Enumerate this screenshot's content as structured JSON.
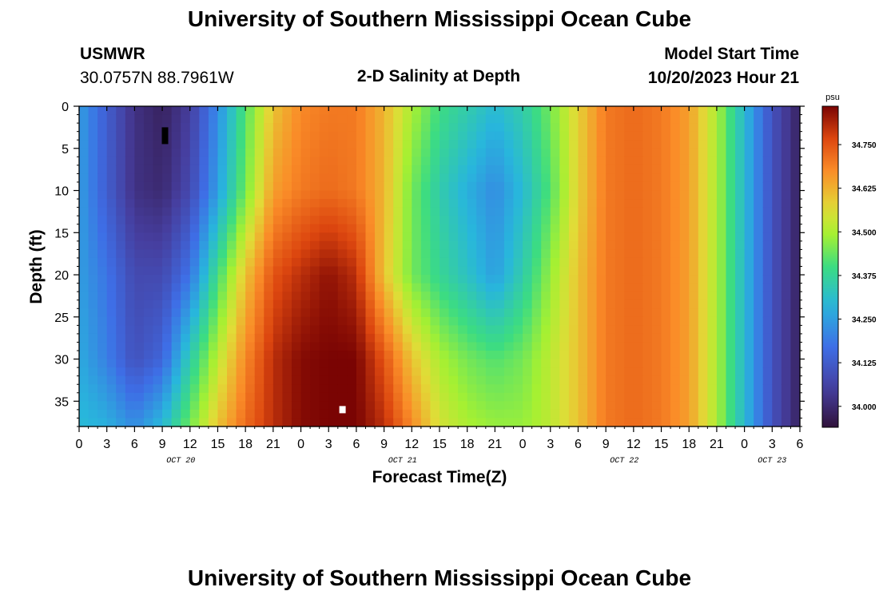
{
  "header": {
    "title": "University of Southern Mississippi Ocean Cube",
    "station": "USMWR",
    "coords": "30.0757N  88.7961W",
    "subtitle": "2-D Salinity at Depth",
    "model_label": "Model Start Time",
    "model_time": "10/20/2023 Hour 21"
  },
  "footer": {
    "title": "University of Southern Mississippi Ocean Cube"
  },
  "chart_data": {
    "type": "heatmap",
    "title": "2-D Salinity at Depth",
    "xlabel": "Forecast Time(Z)",
    "ylabel": "Depth (ft)",
    "x_tick_labels": [
      "0",
      "3",
      "6",
      "9",
      "12",
      "15",
      "18",
      "21",
      "0",
      "3",
      "6",
      "9",
      "12",
      "15",
      "18",
      "21",
      "0",
      "3",
      "6",
      "9",
      "12",
      "15",
      "18",
      "21",
      "0",
      "3",
      "6"
    ],
    "x_hours": [
      0,
      3,
      6,
      9,
      12,
      15,
      18,
      21,
      24,
      27,
      30,
      33,
      36,
      39,
      42,
      45,
      48,
      51,
      54,
      57,
      60,
      63,
      66,
      69,
      72,
      75,
      78
    ],
    "dates": [
      {
        "label": "OCT 20",
        "hour": 11
      },
      {
        "label": "OCT 21",
        "hour": 35
      },
      {
        "label": "OCT 22",
        "hour": 59
      },
      {
        "label": "OCT 23",
        "hour": 75
      }
    ],
    "xlim": [
      0,
      78
    ],
    "y_ticks": [
      0,
      5,
      10,
      15,
      20,
      25,
      30,
      35
    ],
    "ylim": [
      0,
      38
    ],
    "colorbar": {
      "unit": "psu",
      "ticks": [
        "34.000",
        "34.125",
        "34.250",
        "34.375",
        "34.500",
        "34.625",
        "34.750"
      ],
      "tick_values": [
        34.0,
        34.125,
        34.25,
        34.375,
        34.5,
        34.625,
        34.75
      ],
      "range": [
        33.94,
        34.86
      ]
    },
    "salinity_profiles_psu": {
      "depths_ft": [
        0,
        10,
        20,
        30,
        38
      ],
      "by_hour": [
        {
          "hour": 0,
          "values": [
            34.25,
            34.25,
            34.25,
            34.27,
            34.3
          ]
        },
        {
          "hour": 3,
          "values": [
            34.13,
            34.13,
            34.18,
            34.2,
            34.28
          ]
        },
        {
          "hour": 6,
          "values": [
            34.02,
            34.02,
            34.08,
            34.1,
            34.22
          ]
        },
        {
          "hour": 9,
          "values": [
            33.98,
            34.0,
            34.08,
            34.15,
            34.3
          ]
        },
        {
          "hour": 12,
          "values": [
            34.05,
            34.08,
            34.18,
            34.35,
            34.45
          ]
        },
        {
          "hour": 15,
          "values": [
            34.22,
            34.25,
            34.4,
            34.52,
            34.6
          ]
        },
        {
          "hour": 18,
          "values": [
            34.42,
            34.45,
            34.6,
            34.68,
            34.72
          ]
        },
        {
          "hour": 21,
          "values": [
            34.6,
            34.65,
            34.75,
            34.8,
            34.8
          ]
        },
        {
          "hour": 24,
          "values": [
            34.68,
            34.7,
            34.8,
            34.85,
            34.85
          ]
        },
        {
          "hour": 27,
          "values": [
            34.7,
            34.72,
            34.84,
            34.86,
            34.86
          ]
        },
        {
          "hour": 30,
          "values": [
            34.7,
            34.7,
            34.8,
            34.86,
            34.86
          ]
        },
        {
          "hour": 33,
          "values": [
            34.62,
            34.62,
            34.6,
            34.75,
            34.8
          ]
        },
        {
          "hour": 36,
          "values": [
            34.5,
            34.45,
            34.45,
            34.6,
            34.68
          ]
        },
        {
          "hour": 39,
          "values": [
            34.4,
            34.35,
            34.38,
            34.5,
            34.55
          ]
        },
        {
          "hour": 42,
          "values": [
            34.35,
            34.28,
            34.32,
            34.45,
            34.5
          ]
        },
        {
          "hour": 45,
          "values": [
            34.3,
            34.22,
            34.25,
            34.42,
            34.48
          ]
        },
        {
          "hour": 48,
          "values": [
            34.35,
            34.3,
            34.35,
            34.45,
            34.48
          ]
        },
        {
          "hour": 51,
          "values": [
            34.45,
            34.42,
            34.48,
            34.52,
            34.52
          ]
        },
        {
          "hour": 54,
          "values": [
            34.58,
            34.58,
            34.6,
            34.6,
            34.6
          ]
        },
        {
          "hour": 57,
          "values": [
            34.7,
            34.7,
            34.7,
            34.7,
            34.7
          ]
        },
        {
          "hour": 60,
          "values": [
            34.72,
            34.72,
            34.72,
            34.72,
            34.72
          ]
        },
        {
          "hour": 63,
          "values": [
            34.7,
            34.7,
            34.7,
            34.7,
            34.7
          ]
        },
        {
          "hour": 66,
          "values": [
            34.65,
            34.65,
            34.65,
            34.65,
            34.65
          ]
        },
        {
          "hour": 69,
          "values": [
            34.5,
            34.5,
            34.5,
            34.5,
            34.5
          ]
        },
        {
          "hour": 72,
          "values": [
            34.3,
            34.3,
            34.3,
            34.3,
            34.3
          ]
        },
        {
          "hour": 75,
          "values": [
            34.1,
            34.1,
            34.1,
            34.1,
            34.1
          ]
        },
        {
          "hour": 78,
          "values": [
            33.98,
            33.98,
            33.98,
            33.98,
            33.98
          ]
        }
      ]
    },
    "markers": [
      {
        "type": "min",
        "hour": 9.3,
        "depth_ft": 3.5,
        "color": "#000000"
      },
      {
        "type": "max",
        "hour": 28.5,
        "depth_ft": 36,
        "color": "#ffffff"
      }
    ]
  }
}
